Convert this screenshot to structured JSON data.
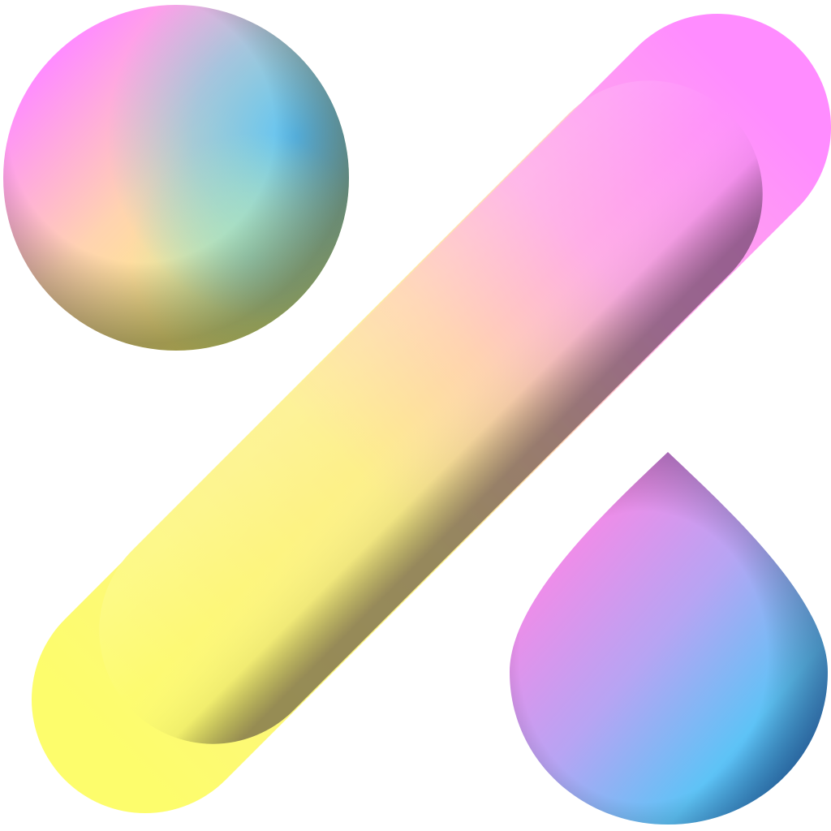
{
  "logo": {
    "name": "percent-sign-logo",
    "parts": [
      "sphere",
      "diagonal-bar",
      "teardrop"
    ],
    "colors": {
      "pink": "#ff8cff",
      "magenta": "#ff86e6",
      "yellow": "#fdfd6c",
      "peach": "#ffd3b0",
      "sky_blue": "#5ec3f6",
      "deep_blue": "#2a7fc4",
      "mint": "#a6e3c4",
      "lavender": "#b7a4f3",
      "background": "#ffffff"
    }
  }
}
